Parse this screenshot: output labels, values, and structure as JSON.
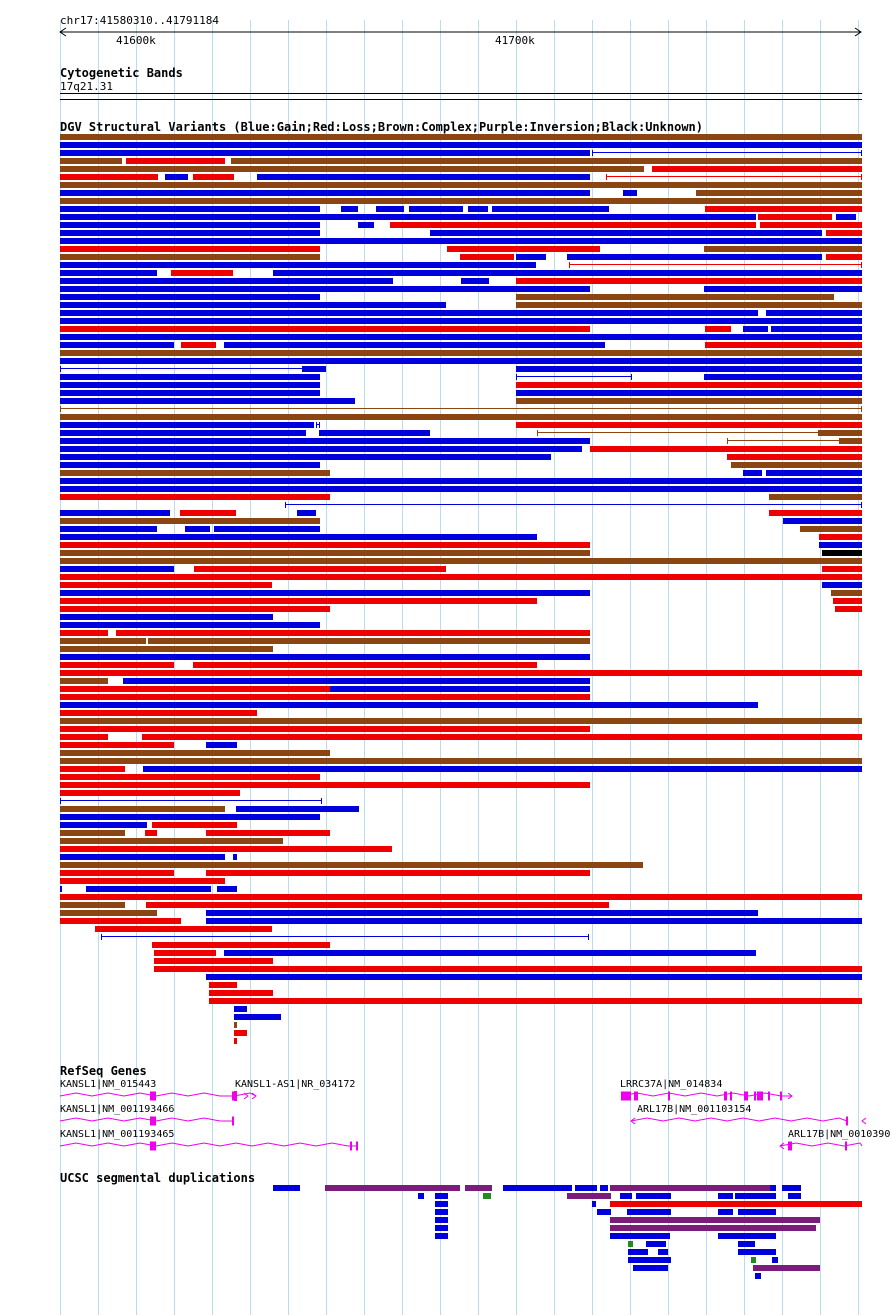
{
  "ruler": {
    "location": "chr17:41580310..41791184",
    "ticks": [
      {
        "label": "41600k",
        "pos": 41600000
      },
      {
        "label": "41700k",
        "pos": 41700000
      }
    ],
    "start": 41580310,
    "end": 41791184
  },
  "tracks": {
    "cytoband": {
      "title": "Cytogenetic Bands",
      "band": "17q21.31"
    },
    "dgv": {
      "title": "DGV Structural Variants (Blue:Gain;Red:Loss;Brown:Complex;Purple:Inversion;Black:Unknown)"
    },
    "refseq": {
      "title": "RefSeq Genes",
      "genes": [
        {
          "label": "KANSL1|NM_015443"
        },
        {
          "label": "KANSL1-AS1|NR_034172"
        },
        {
          "label": "LRRC37A|NM_014834"
        },
        {
          "label": "KANSL1|NM_001193466"
        },
        {
          "label": "ARL17B|NM_001103154"
        },
        {
          "label": "KANSL1|NM_001193465"
        },
        {
          "label": "ARL17B|NM_0010390"
        }
      ]
    },
    "segdup": {
      "title": "UCSC segmental duplications"
    }
  },
  "colors": {
    "gain": "#0000dd",
    "loss": "#ee0000",
    "complex": "#8b4513",
    "inversion": "#7b1b7b",
    "unknown": "#000000",
    "gene": "#ee00ee",
    "grid": "#b8dcf0",
    "segdup_green": "#228b22"
  }
}
